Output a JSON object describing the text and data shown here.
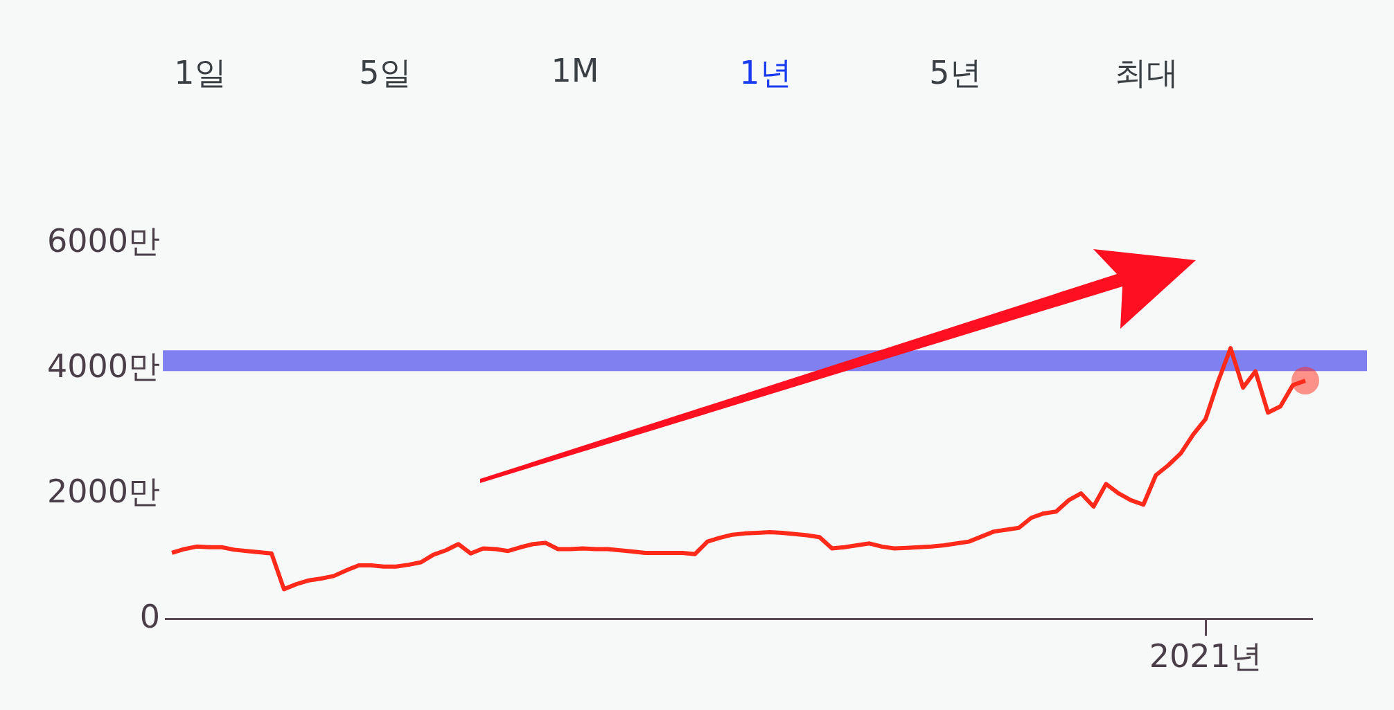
{
  "chart_data": {
    "type": "line",
    "annotations": [
      "1일",
      "5일",
      "1M",
      "1년",
      "5년",
      "최대"
    ],
    "categories": [
      null,
      null,
      null,
      null,
      null,
      null,
      null,
      null,
      null,
      null,
      null,
      null,
      null,
      null,
      null,
      null,
      null,
      null,
      null,
      null,
      null,
      null,
      null,
      null,
      null,
      null,
      null,
      null,
      null,
      null,
      null,
      null,
      null,
      null,
      null,
      null,
      null,
      null,
      null,
      null,
      null,
      null,
      null,
      null,
      null,
      null,
      null,
      null,
      null,
      null,
      null,
      null,
      null,
      null,
      null,
      null,
      null,
      null,
      null,
      null,
      null,
      null,
      null,
      null,
      null,
      null,
      null,
      null,
      null,
      null,
      null,
      null,
      null,
      null,
      null,
      null,
      null,
      null,
      null,
      null,
      null,
      null,
      null,
      "2021년",
      null,
      null,
      null,
      null,
      null,
      null,
      null,
      null
    ],
    "series": [
      {
        "color": "#ff2a1a",
        "values": [
          1060,
          1120,
          1160,
          1150,
          1150,
          1110,
          1090,
          1070,
          1050,
          480,
          560,
          620,
          650,
          690,
          780,
          860,
          860,
          840,
          840,
          870,
          910,
          1030,
          1100,
          1200,
          1050,
          1130,
          1120,
          1090,
          1150,
          1200,
          1220,
          1120,
          1120,
          1130,
          1120,
          1120,
          1100,
          1080,
          1060,
          1060,
          1060,
          1060,
          1040,
          1240,
          1300,
          1350,
          1370,
          1380,
          1390,
          1380,
          1360,
          1340,
          1310,
          1130,
          1150,
          1180,
          1210,
          1160,
          1130,
          1140,
          1150,
          1160,
          1180,
          1210,
          1240,
          1320,
          1400,
          1430,
          1460,
          1620,
          1690,
          1720,
          1900,
          2010,
          1800,
          2160,
          2010,
          1900,
          1830,
          2300,
          2460,
          2650,
          2950,
          3200,
          3800,
          4330,
          3700,
          3960,
          3300,
          3400,
          3740,
          3810
        ]
      }
    ],
    "ylim": [
      0,
      6000
    ],
    "yticks": [
      {
        "value": 0,
        "label": "0"
      },
      {
        "value": 2000,
        "label": "2000만"
      },
      {
        "value": 4000,
        "label": "4000만"
      },
      {
        "value": 6000,
        "label": "6000만"
      }
    ],
    "ref_lines": [
      {
        "axis": "y",
        "value": 4130,
        "color": "#8080f0"
      }
    ],
    "legend": false,
    "grid": false
  }
}
